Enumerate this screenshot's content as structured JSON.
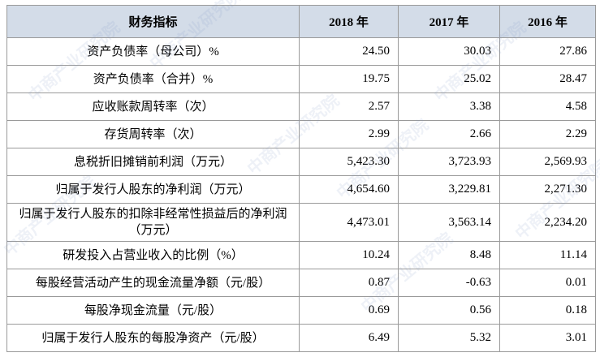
{
  "watermark": "中商产业研究院",
  "table": {
    "header": [
      "财务指标",
      "2018 年",
      "2017 年",
      "2016 年"
    ],
    "rows": [
      [
        "资产负债率（母公司）%",
        "24.50",
        "30.03",
        "27.86"
      ],
      [
        "资产负债率（合并）%",
        "19.75",
        "25.02",
        "28.47"
      ],
      [
        "应收账款周转率（次）",
        "2.57",
        "3.38",
        "4.58"
      ],
      [
        "存货周转率（次）",
        "2.99",
        "2.66",
        "2.29"
      ],
      [
        "息税折旧摊销前利润（万元）",
        "5,423.30",
        "3,723.93",
        "2,569.93"
      ],
      [
        "归属于发行人股东的净利润（万元）",
        "4,654.60",
        "3,229.81",
        "2,271.30"
      ],
      [
        "归属于发行人股东的扣除非经常性损益后的净利润（万元）",
        "4,473.01",
        "3,563.14",
        "2,234.20"
      ],
      [
        "研发投入占营业收入的比例（%）",
        "10.24",
        "8.48",
        "11.14"
      ],
      [
        "每股经营活动产生的现金流量净额（元/股）",
        "0.87",
        "-0.63",
        "0.01"
      ],
      [
        "每股净现金流量（元/股）",
        "0.69",
        "0.56",
        "0.18"
      ],
      [
        "归属于发行人股东的每股净资产（元/股）",
        "6.49",
        "5.32",
        "3.01"
      ]
    ]
  }
}
